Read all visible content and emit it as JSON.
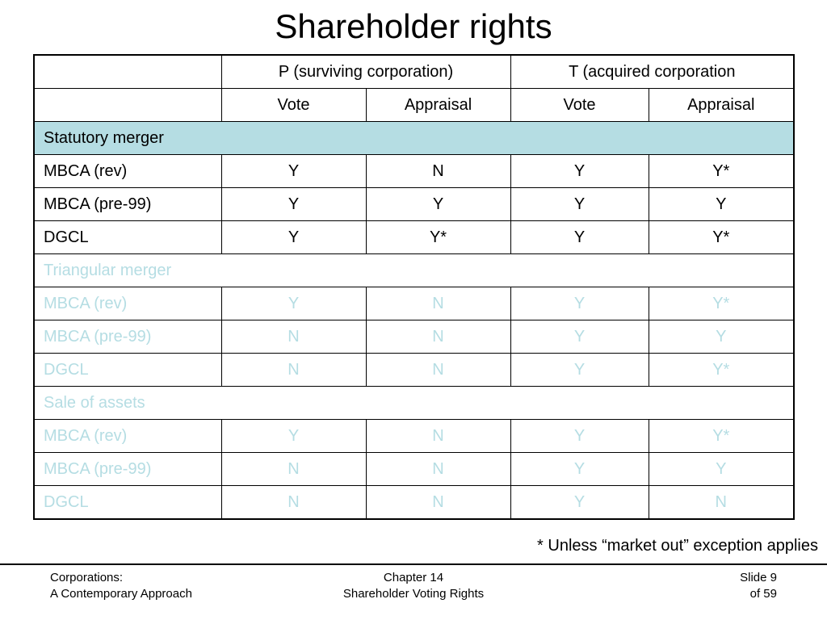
{
  "title": "Shareholder rights",
  "table": {
    "group_headers": [
      "",
      "P (surviving corporation)",
      "T (acquired corporation"
    ],
    "sub_headers": [
      "",
      "Vote",
      "Appraisal",
      "Vote",
      "Appraisal"
    ],
    "sections": [
      {
        "name": "Statutory merger",
        "highlighted": true,
        "rows": [
          {
            "label": "MBCA (rev)",
            "values": [
              "Y",
              "N",
              "Y",
              "Y*"
            ]
          },
          {
            "label": "MBCA (pre-99)",
            "values": [
              "Y",
              "Y",
              "Y",
              "Y"
            ]
          },
          {
            "label": "DGCL",
            "values": [
              "Y",
              "Y*",
              "Y",
              "Y*"
            ]
          }
        ]
      },
      {
        "name": "Triangular merger",
        "highlighted": false,
        "rows": [
          {
            "label": "MBCA (rev)",
            "values": [
              "Y",
              "N",
              "Y",
              "Y*"
            ]
          },
          {
            "label": "MBCA (pre-99)",
            "values": [
              "N",
              "N",
              "Y",
              "Y"
            ]
          },
          {
            "label": "DGCL",
            "values": [
              "N",
              "N",
              "Y",
              "Y*"
            ]
          }
        ]
      },
      {
        "name": "Sale of assets",
        "highlighted": false,
        "rows": [
          {
            "label": "MBCA (rev)",
            "values": [
              "Y",
              "N",
              "Y",
              "Y*"
            ]
          },
          {
            "label": "MBCA (pre-99)",
            "values": [
              "N",
              "N",
              "Y",
              "Y"
            ]
          },
          {
            "label": "DGCL",
            "values": [
              "N",
              "N",
              "Y",
              "N"
            ]
          }
        ]
      }
    ]
  },
  "footnote": "* Unless “market out” exception applies",
  "footer": {
    "left": [
      "Corporations:",
      "A Contemporary Approach"
    ],
    "center": [
      "Chapter 14",
      "Shareholder Voting Rights"
    ],
    "right": [
      "Slide 9",
      "of 59"
    ]
  },
  "colors": {
    "highlight": "#b5dde3",
    "faded_text": "#b5dde3"
  }
}
